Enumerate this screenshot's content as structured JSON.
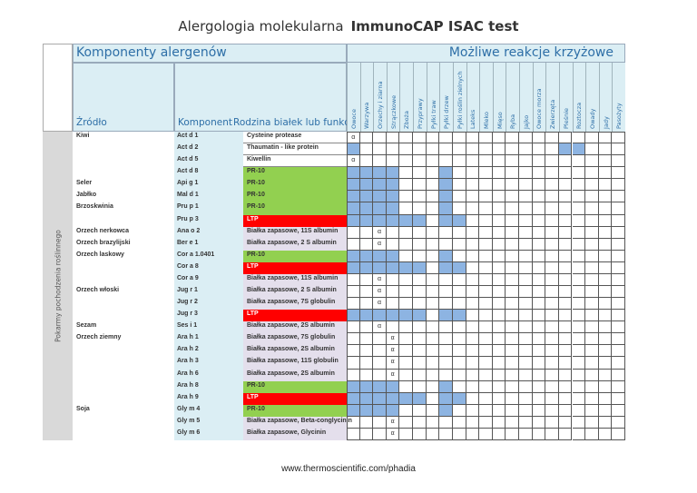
{
  "title": {
    "part1": "Alergologia molekularna",
    "part2": "ImmunoCAP ISAC test"
  },
  "header": {
    "components_label": "Komponenty alergenów",
    "reactions_label": "Możliwe reakcje krzyżowe",
    "source_col": "Źródło",
    "component_col": "Komponent",
    "family_col": "Rodzina białek lub funkcja",
    "side_label": "Pokarmy pochodzenia roślinnego"
  },
  "reaction_columns": [
    "Owoce",
    "Warzywa",
    "Orzechy i ziarna",
    "Strączkowe",
    "Zboża",
    "Przyprawy",
    "Pyłki traw",
    "Pyłki drzew",
    "Pyłki roślin zielnych",
    "Lateks",
    "Mleko",
    "Mięso",
    "Ryba",
    "Jajko",
    "Owoce morza",
    "Zwierzęta",
    "Pleśnie",
    "Roztocza",
    "Owady",
    "Jady",
    "Pasożyty"
  ],
  "colors": {
    "blue": "#8db4e2",
    "pr10": "#92d050",
    "ltp": "#ff0000",
    "storage": "#e4dfec",
    "white": "#ffffff"
  },
  "marker_symbol": "α",
  "rows": [
    {
      "source": "Kiwi",
      "component": "Act d 1",
      "family": "Cysteine protease",
      "type": "white",
      "blue": [],
      "alpha": [
        0
      ]
    },
    {
      "source": "",
      "component": "Act d 2",
      "family": "Thaumatin - like protein",
      "type": "white",
      "blue": [
        0,
        16,
        17
      ],
      "alpha": []
    },
    {
      "source": "",
      "component": "Act d 5",
      "family": "Kiwellin",
      "type": "white",
      "blue": [],
      "alpha": [
        0
      ]
    },
    {
      "source": "",
      "component": "Act d 8",
      "family": "PR-10",
      "type": "pr10",
      "blue": [
        0,
        1,
        2,
        3,
        7
      ],
      "alpha": []
    },
    {
      "source": "Seler",
      "component": "Api g 1",
      "family": "PR-10",
      "type": "pr10",
      "blue": [
        0,
        1,
        2,
        3,
        7
      ],
      "alpha": []
    },
    {
      "source": "Jabłko",
      "component": "Mal d 1",
      "family": "PR-10",
      "type": "pr10",
      "blue": [
        0,
        1,
        2,
        3,
        7
      ],
      "alpha": []
    },
    {
      "source": "Brzoskwinia",
      "component": "Pru p 1",
      "family": "PR-10",
      "type": "pr10",
      "blue": [
        0,
        1,
        2,
        3,
        7
      ],
      "alpha": []
    },
    {
      "source": "",
      "component": "Pru p 3",
      "family": "LTP",
      "type": "ltp",
      "blue": [
        0,
        1,
        2,
        3,
        4,
        5,
        7,
        8
      ],
      "alpha": []
    },
    {
      "source": "Orzech nerkowca",
      "component": "Ana o 2",
      "family": "Białka zapasowe, 11S albumin",
      "type": "storage",
      "blue": [],
      "alpha": [
        2
      ]
    },
    {
      "source": "Orzech brazylijski",
      "component": "Ber e 1",
      "family": "Białka zapasowe, 2 S albumin",
      "type": "storage",
      "blue": [],
      "alpha": [
        2
      ]
    },
    {
      "source": "Orzech laskowy",
      "component": "Cor a 1.0401",
      "family": "PR-10",
      "type": "pr10",
      "blue": [
        0,
        1,
        2,
        3,
        7
      ],
      "alpha": []
    },
    {
      "source": "",
      "component": "Cor a 8",
      "family": "LTP",
      "type": "ltp",
      "blue": [
        0,
        1,
        2,
        3,
        4,
        5,
        7,
        8
      ],
      "alpha": []
    },
    {
      "source": "",
      "component": "Cor a 9",
      "family": "Białka zapasowe, 11S albumin",
      "type": "storage",
      "blue": [],
      "alpha": [
        2
      ]
    },
    {
      "source": "Orzech włoski",
      "component": "Jug r 1",
      "family": "Białka zapasowe, 2 S albumin",
      "type": "storage",
      "blue": [],
      "alpha": [
        2
      ]
    },
    {
      "source": "",
      "component": "Jug r 2",
      "family": "Białka zapasowe, 7S globulin",
      "type": "storage",
      "blue": [],
      "alpha": [
        2
      ]
    },
    {
      "source": "",
      "component": "Jug r 3",
      "family": "LTP",
      "type": "ltp",
      "blue": [
        0,
        1,
        2,
        3,
        4,
        5,
        7,
        8
      ],
      "alpha": []
    },
    {
      "source": "Sezam",
      "component": "Ses i 1",
      "family": "Białka zapasowe, 2S albumin",
      "type": "storage",
      "blue": [],
      "alpha": [
        2
      ]
    },
    {
      "source": "Orzech ziemny",
      "component": "Ara h 1",
      "family": "Białka zapasowe, 7S globulin",
      "type": "storage",
      "blue": [],
      "alpha": [
        3
      ]
    },
    {
      "source": "",
      "component": "Ara h 2",
      "family": "Białka zapasowe, 2S albumin",
      "type": "storage",
      "blue": [],
      "alpha": [
        3
      ]
    },
    {
      "source": "",
      "component": "Ara h 3",
      "family": "Białka zapasowe, 11S globulin",
      "type": "storage",
      "blue": [],
      "alpha": [
        3
      ]
    },
    {
      "source": "",
      "component": "Ara h 6",
      "family": "Białka zapasowe, 2S albumin",
      "type": "storage",
      "blue": [],
      "alpha": [
        3
      ]
    },
    {
      "source": "",
      "component": "Ara h 8",
      "family": "PR-10",
      "type": "pr10",
      "blue": [
        0,
        1,
        2,
        3,
        7
      ],
      "alpha": []
    },
    {
      "source": "",
      "component": "Ara h 9",
      "family": "LTP",
      "type": "ltp",
      "blue": [
        0,
        1,
        2,
        3,
        4,
        5,
        7,
        8
      ],
      "alpha": []
    },
    {
      "source": "Soja",
      "component": "Gly m 4",
      "family": "PR-10",
      "type": "pr10",
      "blue": [
        0,
        1,
        2,
        3,
        7
      ],
      "alpha": []
    },
    {
      "source": "",
      "component": "Gly m 5",
      "family": "Białka zapasowe, Beta-conglycinin",
      "type": "storage",
      "blue": [],
      "alpha": [
        3
      ]
    },
    {
      "source": "",
      "component": "Gly m 6",
      "family": "Białka zapasowe, Glycinin",
      "type": "storage",
      "blue": [],
      "alpha": [
        3
      ]
    }
  ],
  "footer": "www.thermoscientific.com/phadia"
}
